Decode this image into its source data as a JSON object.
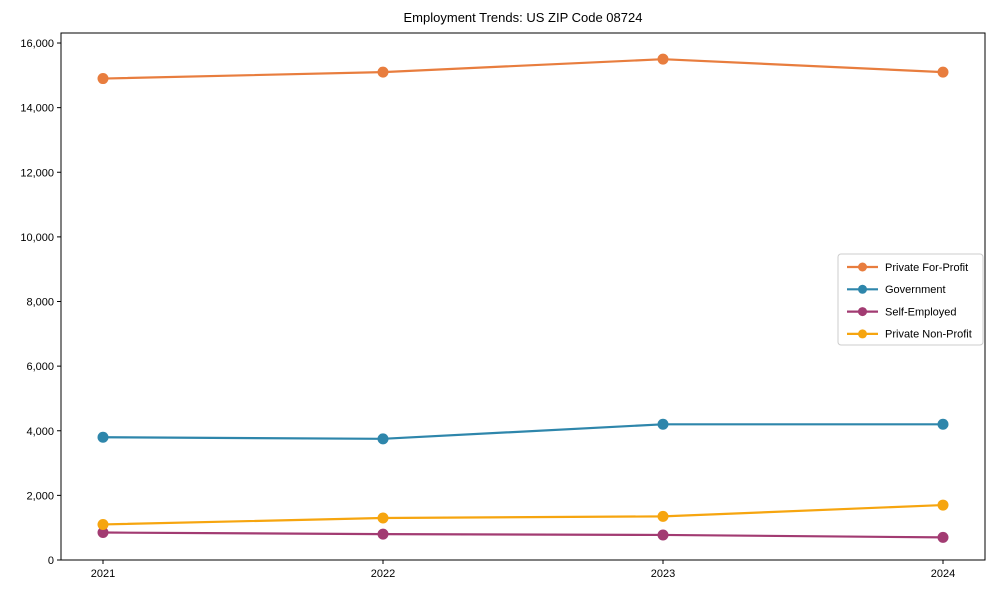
{
  "chart_data": {
    "type": "line",
    "title": "Employment Trends: US ZIP Code 08724",
    "x": [
      "2021",
      "2022",
      "2023",
      "2024"
    ],
    "series": [
      {
        "name": "Private For-Profit",
        "color": "#E87D3E",
        "values": [
          14900,
          15100,
          15500,
          15100
        ]
      },
      {
        "name": "Government",
        "color": "#2E86AB",
        "values": [
          3800,
          3750,
          4200,
          4200
        ]
      },
      {
        "name": "Self-Employed",
        "color": "#A23B72",
        "values": [
          850,
          800,
          775,
          700
        ]
      },
      {
        "name": "Private Non-Profit",
        "color": "#F6A50F",
        "values": [
          1100,
          1300,
          1350,
          1700
        ]
      }
    ],
    "xlabel": "",
    "ylabel": "",
    "ylim": [
      0,
      16310
    ],
    "yticks": [
      0,
      2000,
      4000,
      6000,
      8000,
      10000,
      12000,
      14000,
      16000
    ],
    "grid": false,
    "legend_position": "center-right",
    "marker": "circle",
    "background_color": "#ffffff",
    "axis_color": "#000000",
    "legend_border_color": "#cccccc"
  }
}
